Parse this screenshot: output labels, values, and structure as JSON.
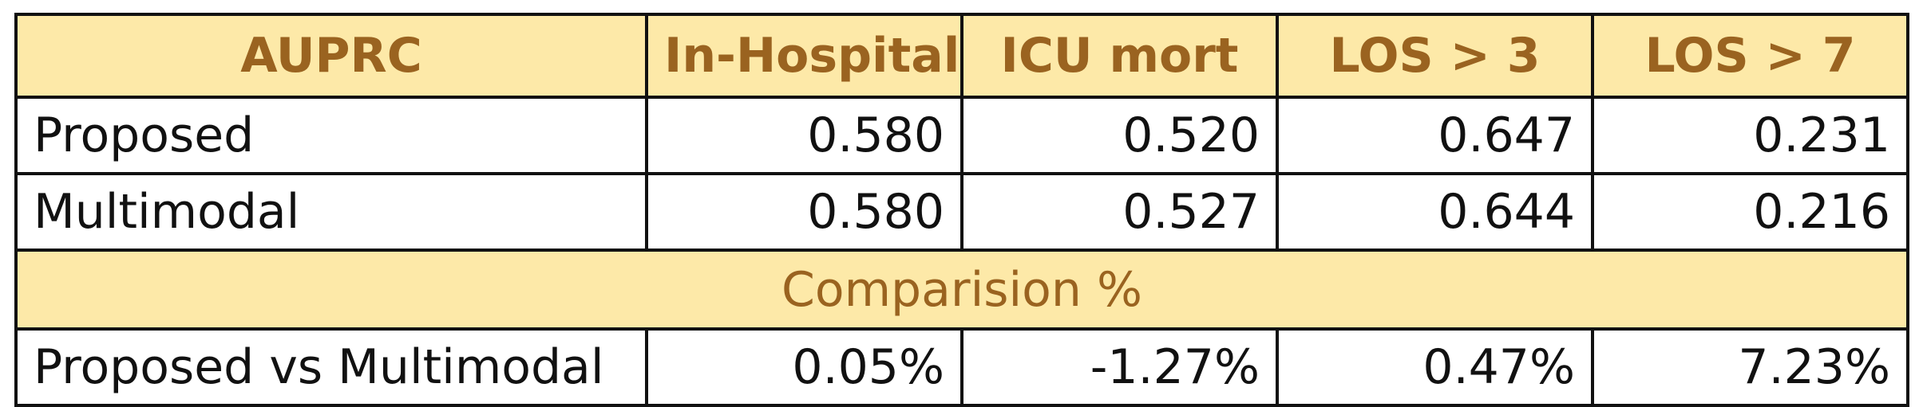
{
  "table": {
    "header": [
      "AUPRC",
      "In-Hospital",
      "ICU mort",
      "LOS > 3",
      "LOS > 7"
    ],
    "rows": [
      {
        "label": "Proposed",
        "values": [
          "0.580",
          "0.520",
          "0.647",
          "0.231"
        ]
      },
      {
        "label": "Multimodal",
        "values": [
          "0.580",
          "0.527",
          "0.644",
          "0.216"
        ]
      }
    ],
    "section_label": "Comparision %",
    "comparison_rows": [
      {
        "label": "Proposed vs Multimodal",
        "values": [
          "0.05%",
          "-1.27%",
          "0.47%",
          "7.23%"
        ]
      }
    ]
  },
  "colors": {
    "header_background": "#fde9a8",
    "header_text": "#9a6320",
    "border": "#111111"
  }
}
